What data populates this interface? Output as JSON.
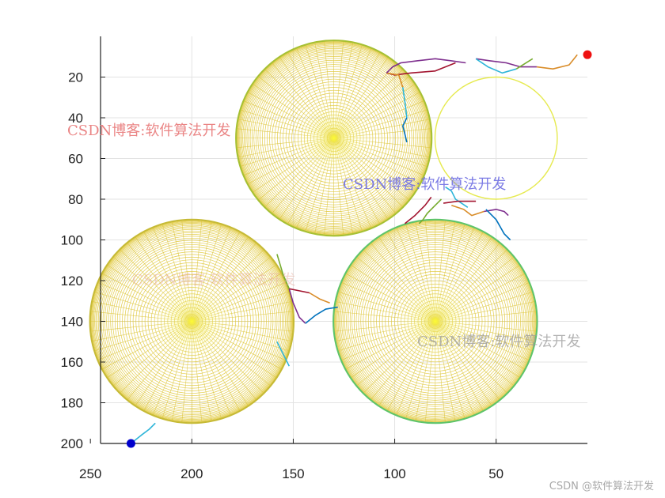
{
  "chart_data": {
    "type": "scatter",
    "title": "",
    "xlabel": "",
    "ylabel": "",
    "x_axis": {
      "reversed": true,
      "range": [
        245,
        5
      ],
      "ticks": [
        250,
        200,
        150,
        100,
        50
      ]
    },
    "y_axis": {
      "reversed": true,
      "range": [
        0,
        200
      ],
      "ticks": [
        20,
        40,
        60,
        80,
        100,
        120,
        140,
        160,
        180,
        200
      ]
    },
    "grid": true,
    "obstacles": [
      {
        "center": [
          130,
          50
        ],
        "radius": 48,
        "style": "mesh",
        "rim_color": "#a6c033"
      },
      {
        "center": [
          200,
          140
        ],
        "radius": 50,
        "style": "mesh",
        "rim_color": "#c6ba36"
      },
      {
        "center": [
          80,
          140
        ],
        "radius": 50,
        "style": "mesh",
        "rim_color": "#5ec46a"
      },
      {
        "center": [
          50,
          50
        ],
        "radius": 30,
        "style": "ring",
        "rim_color": "#e6ea50"
      }
    ],
    "start_point": {
      "x": 230,
      "y": 200,
      "color": "#0000cc"
    },
    "goal_point": {
      "x": 5,
      "y": 9,
      "color": "#ee1111"
    },
    "paths": [
      {
        "color": "#2eb5d9",
        "points": [
          [
            230,
            200
          ],
          [
            225,
            196
          ],
          [
            221,
            193
          ],
          [
            218,
            190
          ]
        ]
      },
      {
        "color": "#d98c28",
        "points": [
          [
            10,
            9
          ],
          [
            14,
            14
          ],
          [
            22,
            16
          ],
          [
            30,
            15
          ]
        ]
      },
      {
        "color": "#7e2f8e",
        "points": [
          [
            30,
            15
          ],
          [
            38,
            15
          ],
          [
            45,
            13
          ],
          [
            53,
            12
          ],
          [
            60,
            11
          ]
        ]
      },
      {
        "color": "#2eb5d9",
        "points": [
          [
            60,
            11
          ],
          [
            54,
            15
          ],
          [
            47,
            18
          ],
          [
            40,
            16
          ]
        ]
      },
      {
        "color": "#77ac30",
        "points": [
          [
            40,
            16
          ],
          [
            32,
            11
          ]
        ]
      },
      {
        "color": "#a2142f",
        "points": [
          [
            70,
            13
          ],
          [
            80,
            17
          ],
          [
            92,
            18
          ],
          [
            100,
            19
          ],
          [
            104,
            18
          ]
        ]
      },
      {
        "color": "#d98c28",
        "points": [
          [
            104,
            18
          ],
          [
            98,
            19
          ],
          [
            96,
            25
          ]
        ]
      },
      {
        "color": "#2eb5d9",
        "points": [
          [
            96,
            25
          ],
          [
            95,
            32
          ],
          [
            94,
            40
          ]
        ]
      },
      {
        "color": "#0072bd",
        "points": [
          [
            94,
            40
          ],
          [
            96,
            44
          ],
          [
            95,
            48
          ],
          [
            94,
            52
          ]
        ]
      },
      {
        "color": "#7e2f8e",
        "points": [
          [
            104,
            18
          ],
          [
            101,
            15
          ],
          [
            97,
            13
          ],
          [
            89,
            12
          ],
          [
            80,
            11
          ],
          [
            72,
            12
          ],
          [
            65,
            13
          ]
        ]
      },
      {
        "color": "#2eb5d9",
        "points": [
          [
            75,
            74
          ],
          [
            72,
            76
          ],
          [
            70,
            80
          ],
          [
            64,
            84
          ]
        ]
      },
      {
        "color": "#a2142f",
        "points": [
          [
            76,
            82
          ],
          [
            69,
            81
          ],
          [
            60,
            81
          ]
        ]
      },
      {
        "color": "#d98c28",
        "points": [
          [
            72,
            83
          ],
          [
            66,
            85
          ],
          [
            62,
            88
          ],
          [
            56,
            86
          ]
        ]
      },
      {
        "color": "#7e2f8e",
        "points": [
          [
            56,
            86
          ],
          [
            50,
            85
          ],
          [
            46,
            86
          ],
          [
            44,
            88
          ]
        ]
      },
      {
        "color": "#77ac30",
        "points": [
          [
            77,
            80
          ],
          [
            80,
            83
          ],
          [
            84,
            87
          ],
          [
            86,
            90
          ],
          [
            88,
            92
          ]
        ]
      },
      {
        "color": "#0072bd",
        "points": [
          [
            55,
            85
          ],
          [
            50,
            90
          ],
          [
            46,
            97
          ],
          [
            43,
            100
          ]
        ]
      },
      {
        "color": "#a2142f",
        "points": [
          [
            95,
            92
          ],
          [
            90,
            88
          ],
          [
            85,
            83
          ],
          [
            82,
            79
          ]
        ]
      },
      {
        "color": "#77ac30",
        "points": [
          [
            158,
            107
          ],
          [
            155,
            117
          ],
          [
            152,
            124
          ]
        ]
      },
      {
        "color": "#a2142f",
        "points": [
          [
            152,
            124
          ],
          [
            147,
            125
          ],
          [
            142,
            126
          ]
        ]
      },
      {
        "color": "#d98c28",
        "points": [
          [
            142,
            126
          ],
          [
            137,
            129
          ],
          [
            132,
            131
          ]
        ]
      },
      {
        "color": "#7e2f8e",
        "points": [
          [
            152,
            124
          ],
          [
            150,
            131
          ],
          [
            147,
            138
          ],
          [
            144,
            141
          ]
        ]
      },
      {
        "color": "#0072bd",
        "points": [
          [
            144,
            141
          ],
          [
            139,
            137
          ],
          [
            134,
            134
          ],
          [
            128,
            133
          ]
        ]
      },
      {
        "color": "#2eb5d9",
        "points": [
          [
            158,
            150
          ],
          [
            155,
            156
          ],
          [
            152,
            162
          ]
        ]
      }
    ]
  },
  "watermarks": [
    {
      "text": "CSDN博客:软件算法开发",
      "color": "#e87878",
      "opacity": 0.9
    },
    {
      "text": "CSDN博客:软件算法开发",
      "color": "#6e6ee2",
      "opacity": 0.9
    },
    {
      "text": "CSDN博客:软件算法开发",
      "color": "#e6a89a",
      "opacity": 0.45
    },
    {
      "text": "CSDN博客:软件算法开发",
      "color": "#9a9a9a",
      "opacity": 0.75
    }
  ],
  "footer": {
    "text": "CSDN @软件算法开发"
  }
}
